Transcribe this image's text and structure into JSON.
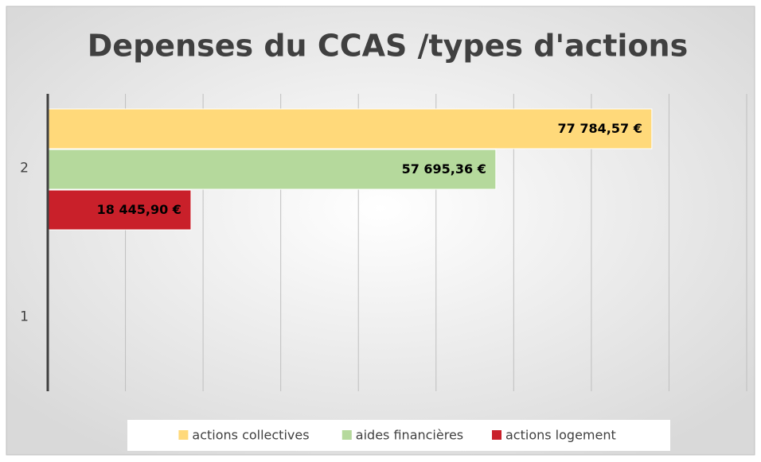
{
  "chart_data": {
    "type": "hbar",
    "title": "Depenses du CCAS /types d'actions",
    "categories": [
      "1",
      "2"
    ],
    "series": [
      {
        "name": "actions collectives",
        "color": "#ffd97a",
        "values": [
          null,
          77784.57
        ],
        "value_labels": [
          null,
          "77 784,57 €"
        ]
      },
      {
        "name": "aides financières",
        "color": "#b5d99c",
        "values": [
          null,
          57695.36
        ],
        "value_labels": [
          null,
          "57 695,36 €"
        ]
      },
      {
        "name": "actions logement",
        "color": "#c9202a",
        "values": [
          null,
          18445.9
        ],
        "value_labels": [
          null,
          "18 445,90 €"
        ]
      }
    ],
    "xlim": [
      0,
      90000
    ],
    "xticks": [
      0,
      10000,
      20000,
      30000,
      40000,
      50000,
      60000,
      70000,
      80000,
      90000
    ],
    "grid": true,
    "legend": "bottom"
  }
}
